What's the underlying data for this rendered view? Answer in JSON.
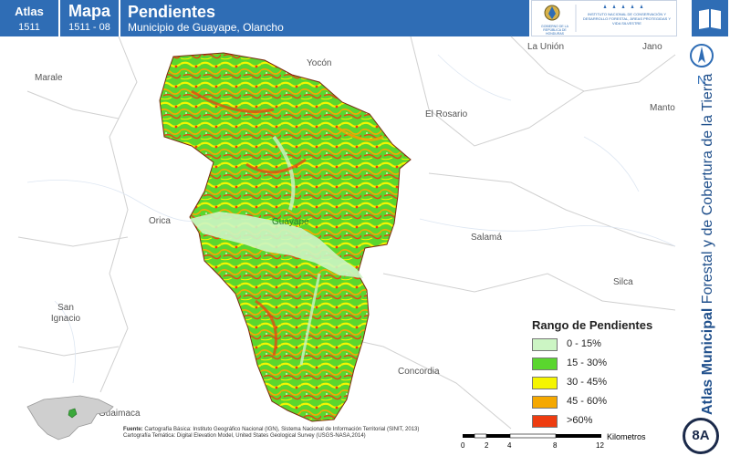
{
  "header": {
    "atlas_label": "Atlas",
    "atlas_code": "1511",
    "mapa_label": "Mapa",
    "mapa_code": "1511 - 08",
    "title": "Pendientes",
    "subtitle": "Municipio de Guayape, Olancho",
    "logo_left_text": "GOBIERNO DE LA REPÚBLICA DE HONDURAS",
    "logo_right_text": "INSTITUTO NACIONAL DE CONSERVACIÓN Y DESARROLLO FORESTAL, ÁREAS PROTEGIDAS Y VIDA SILVESTRE"
  },
  "sidebar": {
    "north_label": "N",
    "vertical_title_bold": "Atlas Municipal",
    "vertical_title_rest": "Forestal y de Cobertura de la Tierra",
    "badge": "8A"
  },
  "places": [
    {
      "id": "yocon",
      "name": "Yocón"
    },
    {
      "id": "launion",
      "name": "La Unión"
    },
    {
      "id": "jano",
      "name": "Jano"
    },
    {
      "id": "marale",
      "name": "Marale"
    },
    {
      "id": "elrosario",
      "name": "El Rosario"
    },
    {
      "id": "manto",
      "name": "Manto"
    },
    {
      "id": "orica",
      "name": "Orica"
    },
    {
      "id": "guayape",
      "name": "Guayape"
    },
    {
      "id": "salama",
      "name": "Salamá"
    },
    {
      "id": "silca",
      "name": "Silca"
    },
    {
      "id": "sanignacio",
      "name": "San Ignacio"
    },
    {
      "id": "concordia",
      "name": "Concordia"
    },
    {
      "id": "guaimaca",
      "name": "Guaimaca"
    }
  ],
  "legend": {
    "title": "Rango de Pendientes",
    "items": [
      {
        "label": "0 - 15%",
        "color": "#ccf5c4"
      },
      {
        "label": "15 - 30%",
        "color": "#5ad62e"
      },
      {
        "label": "30 - 45%",
        "color": "#f5f500"
      },
      {
        "label": "45 - 60%",
        "color": "#f5a800"
      },
      {
        "label": ">60%",
        "color": "#ee3c10"
      }
    ]
  },
  "source": {
    "label": "Fuente:",
    "text1": "Cartografía Básica: Instituto Geográfico Nacional (IGN), Sistema Nacional de Información Territorial (SINIT, 2013)",
    "text2": "Cartografía Temática: Digital Elevation Model, United States Geological Survey (USGS-NASA,2014)"
  },
  "scale": {
    "unit": "Kilometros",
    "ticks": [
      "0",
      "2",
      "4",
      "8",
      "12"
    ]
  },
  "colors": {
    "brand_blue": "#2f6db5",
    "dark_navy": "#1b2a4a"
  }
}
